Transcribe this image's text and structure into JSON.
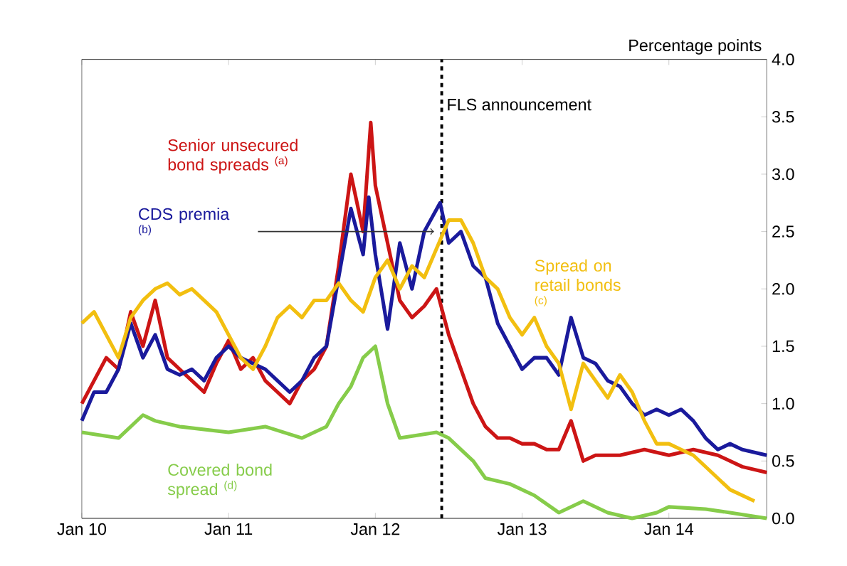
{
  "chart_data": {
    "type": "line",
    "ylabel": "Percentage points",
    "xlim": [
      "2010-01",
      "2014-09"
    ],
    "xticks": [
      {
        "value": "2010-01",
        "label": "Jan 10"
      },
      {
        "value": "2011-01",
        "label": "Jan 11"
      },
      {
        "value": "2012-01",
        "label": "Jan 12"
      },
      {
        "value": "2013-01",
        "label": "Jan 13"
      },
      {
        "value": "2014-01",
        "label": "Jan 14"
      }
    ],
    "ylim": [
      0,
      4
    ],
    "yticks": [
      {
        "value": 0,
        "label": "0.0"
      },
      {
        "value": 0.5,
        "label": "0.5"
      },
      {
        "value": 1,
        "label": "1.0"
      },
      {
        "value": 1.5,
        "label": "1.5"
      },
      {
        "value": 2,
        "label": "2.0"
      },
      {
        "value": 2.5,
        "label": "2.5"
      },
      {
        "value": 3,
        "label": "3.0"
      },
      {
        "value": 3.5,
        "label": "3.5"
      },
      {
        "value": 4,
        "label": "4.0"
      }
    ],
    "grid": false,
    "marker": "none",
    "line_style": "solid",
    "ref_lines": [
      {
        "axis": "x",
        "value": "2012-06-14",
        "label": "FLS announcement",
        "color": "#000000",
        "line_style": "dashed"
      }
    ],
    "series": [
      {
        "name": "Senior unsecured bond spreads $^{(a)}$",
        "color": "#cc1515",
        "x": [
          "2010-01",
          "2010-02",
          "2010-03",
          "2010-04",
          "2010-05",
          "2010-06",
          "2010-07",
          "2010-08",
          "2010-09",
          "2010-10",
          "2010-11",
          "2010-12",
          "2011-01",
          "2011-02",
          "2011-03",
          "2011-04",
          "2011-05",
          "2011-06",
          "2011-07",
          "2011-08",
          "2011-09",
          "2011-10",
          "2011-11",
          "2011-12",
          "2011-12-20",
          "2012-01",
          "2012-02",
          "2012-03",
          "2012-04",
          "2012-05",
          "2012-06",
          "2012-07",
          "2012-08",
          "2012-09",
          "2012-10",
          "2012-11",
          "2012-12",
          "2013-01",
          "2013-02",
          "2013-03",
          "2013-04",
          "2013-05",
          "2013-06",
          "2013-07",
          "2013-09",
          "2013-11",
          "2014-01",
          "2014-03",
          "2014-05",
          "2014-07",
          "2014-09"
        ],
        "values": [
          1.0,
          1.2,
          1.4,
          1.3,
          1.8,
          1.5,
          1.9,
          1.4,
          1.3,
          1.2,
          1.1,
          1.35,
          1.55,
          1.3,
          1.4,
          1.2,
          1.1,
          1.0,
          1.2,
          1.3,
          1.5,
          2.2,
          3.0,
          2.5,
          3.45,
          2.9,
          2.4,
          1.9,
          1.75,
          1.85,
          2.0,
          1.6,
          1.3,
          1.0,
          0.8,
          0.7,
          0.7,
          0.65,
          0.65,
          0.6,
          0.6,
          0.85,
          0.5,
          0.55,
          0.55,
          0.6,
          0.55,
          0.6,
          0.55,
          0.45,
          0.4
        ]
      },
      {
        "name": "CDS premia $^{(b)}$",
        "color": "#1a1a9c",
        "x": [
          "2010-01",
          "2010-02",
          "2010-03",
          "2010-04",
          "2010-05",
          "2010-06",
          "2010-07",
          "2010-08",
          "2010-09",
          "2010-10",
          "2010-11",
          "2010-12",
          "2011-01",
          "2011-02",
          "2011-03",
          "2011-04",
          "2011-05",
          "2011-06",
          "2011-07",
          "2011-08",
          "2011-09",
          "2011-10",
          "2011-11",
          "2011-12",
          "2011-12-15",
          "2012-01",
          "2012-02",
          "2012-03",
          "2012-04",
          "2012-05",
          "2012-06-10",
          "2012-07",
          "2012-08",
          "2012-09",
          "2012-10",
          "2012-11",
          "2012-12",
          "2013-01",
          "2013-02",
          "2013-03",
          "2013-04",
          "2013-05",
          "2013-06",
          "2013-07",
          "2013-08",
          "2013-09",
          "2013-10",
          "2013-11",
          "2013-12",
          "2014-01",
          "2014-02",
          "2014-03",
          "2014-04",
          "2014-05",
          "2014-06",
          "2014-07",
          "2014-09"
        ],
        "values": [
          0.85,
          1.1,
          1.1,
          1.3,
          1.7,
          1.4,
          1.6,
          1.3,
          1.25,
          1.3,
          1.2,
          1.4,
          1.5,
          1.4,
          1.35,
          1.3,
          1.2,
          1.1,
          1.2,
          1.4,
          1.5,
          2.1,
          2.7,
          2.3,
          2.8,
          2.3,
          1.65,
          2.4,
          2.0,
          2.5,
          2.75,
          2.4,
          2.5,
          2.2,
          2.1,
          1.7,
          1.5,
          1.3,
          1.4,
          1.4,
          1.25,
          1.75,
          1.4,
          1.35,
          1.2,
          1.15,
          1.0,
          0.9,
          0.95,
          0.9,
          0.95,
          0.85,
          0.7,
          0.6,
          0.65,
          0.6,
          0.55
        ]
      },
      {
        "name": "Spread on retail bonds $^{(c)}$",
        "color": "#f2bf10",
        "x": [
          "2010-01",
          "2010-02",
          "2010-03",
          "2010-04",
          "2010-05",
          "2010-06",
          "2010-07",
          "2010-08",
          "2010-09",
          "2010-10",
          "2010-11",
          "2010-12",
          "2011-01",
          "2011-02",
          "2011-03",
          "2011-04",
          "2011-05",
          "2011-06",
          "2011-07",
          "2011-08",
          "2011-09",
          "2011-10",
          "2011-11",
          "2011-12",
          "2012-01",
          "2012-02",
          "2012-03",
          "2012-04",
          "2012-05",
          "2012-06",
          "2012-07",
          "2012-08",
          "2012-09",
          "2012-10",
          "2012-11",
          "2012-12",
          "2013-01",
          "2013-02",
          "2013-03",
          "2013-04",
          "2013-05",
          "2013-06",
          "2013-07",
          "2013-08",
          "2013-09",
          "2013-10",
          "2013-11",
          "2013-12",
          "2014-01",
          "2014-02",
          "2014-03",
          "2014-04",
          "2014-05",
          "2014-06",
          "2014-08"
        ],
        "values": [
          1.7,
          1.8,
          1.6,
          1.4,
          1.75,
          1.9,
          2.0,
          2.05,
          1.95,
          2.0,
          1.9,
          1.8,
          1.6,
          1.4,
          1.3,
          1.5,
          1.75,
          1.85,
          1.75,
          1.9,
          1.9,
          2.05,
          1.9,
          1.8,
          2.1,
          2.25,
          2.0,
          2.2,
          2.1,
          2.35,
          2.6,
          2.6,
          2.4,
          2.1,
          2.0,
          1.75,
          1.6,
          1.75,
          1.5,
          1.35,
          0.95,
          1.35,
          1.2,
          1.05,
          1.25,
          1.1,
          0.85,
          0.65,
          0.65,
          0.6,
          0.55,
          0.45,
          0.35,
          0.25,
          0.15
        ]
      },
      {
        "name": "Covered bond spread $^{(d)}$",
        "color": "#86cc4a",
        "x": [
          "2010-01",
          "2010-04",
          "2010-06",
          "2010-07",
          "2010-09",
          "2011-01",
          "2011-04",
          "2011-07",
          "2011-09",
          "2011-10",
          "2011-11",
          "2011-12",
          "2012-01",
          "2012-02",
          "2012-03",
          "2012-06",
          "2012-07",
          "2012-09",
          "2012-10",
          "2012-12",
          "2013-02",
          "2013-04",
          "2013-06",
          "2013-08",
          "2013-10",
          "2013-12",
          "2014-01",
          "2014-04",
          "2014-06",
          "2014-09"
        ],
        "values": [
          0.75,
          0.7,
          0.9,
          0.85,
          0.8,
          0.75,
          0.8,
          0.7,
          0.8,
          1.0,
          1.15,
          1.4,
          1.5,
          1.0,
          0.7,
          0.75,
          0.7,
          0.5,
          0.35,
          0.3,
          0.2,
          0.05,
          0.15,
          0.05,
          0.0,
          0.05,
          0.1,
          0.08,
          0.05,
          0.0
        ]
      }
    ]
  }
}
